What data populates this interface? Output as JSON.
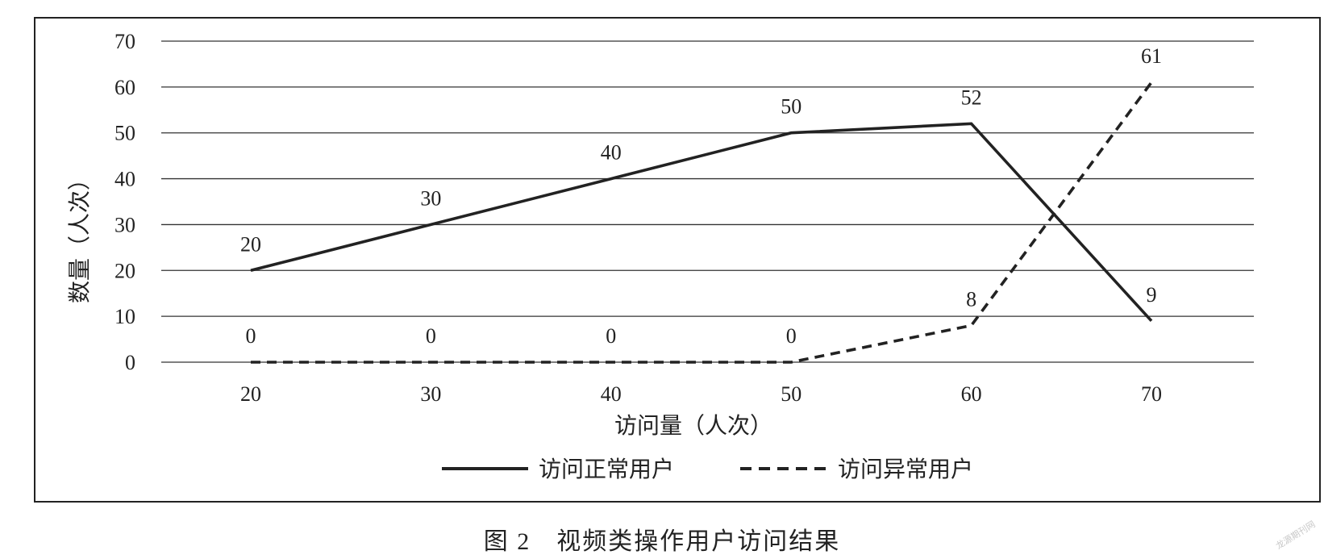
{
  "figure": {
    "caption": "图 2　视频类操作用户访问结果",
    "watermark": "龙源期刊网"
  },
  "chart_data": {
    "type": "line",
    "x": [
      20,
      30,
      40,
      50,
      60,
      70
    ],
    "series": [
      {
        "name": "访问正常用户",
        "values": [
          20,
          30,
          40,
          50,
          52,
          9
        ],
        "style": "solid",
        "color": "#222222"
      },
      {
        "name": "访问异常用户",
        "values": [
          0,
          0,
          0,
          0,
          8,
          61
        ],
        "style": "dashed",
        "color": "#222222"
      }
    ],
    "xlabel": "访问量（人次）",
    "ylabel": "数量（人次）",
    "x_ticks": [
      "20",
      "30",
      "40",
      "50",
      "60",
      "70"
    ],
    "y_ticks": [
      "0",
      "10",
      "20",
      "30",
      "40",
      "50",
      "60",
      "70"
    ],
    "ylim": [
      0,
      70
    ],
    "grid": "horizontal",
    "legend": "bottom"
  }
}
